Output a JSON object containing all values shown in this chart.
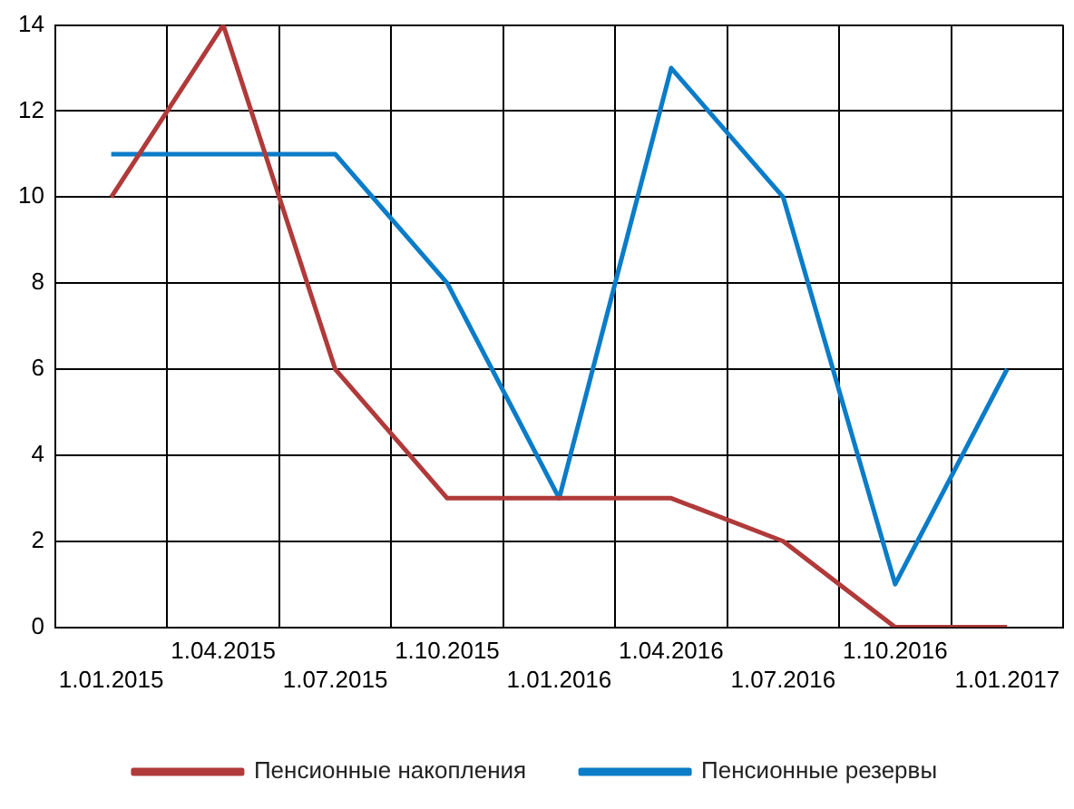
{
  "chart_data": {
    "type": "line",
    "categories": [
      "1.01.2015",
      "1.04.2015",
      "1.07.2015",
      "1.10.2015",
      "1.01.2016",
      "1.04.2016",
      "1.07.2016",
      "1.10.2016",
      "1.01.2017"
    ],
    "series": [
      {
        "name": "Пенсионные накопления",
        "color": "#b03a3a",
        "values": [
          10,
          14,
          6,
          3,
          3,
          3,
          2,
          0,
          0
        ]
      },
      {
        "name": "Пенсионные резервы",
        "color": "#0a7cc8",
        "values": [
          11,
          11,
          11,
          8,
          3,
          13,
          10,
          1,
          6
        ]
      }
    ],
    "ylim": [
      0,
      14
    ],
    "yticks": [
      0,
      2,
      4,
      6,
      8,
      10,
      12,
      14
    ],
    "grid": true,
    "legend": "bottom",
    "marker": "none",
    "line_style": "solid"
  }
}
